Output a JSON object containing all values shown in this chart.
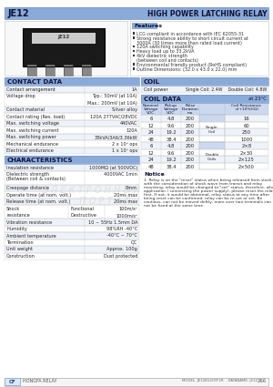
{
  "title_left": "JE12",
  "title_right": "HIGH POWER LATCHING RELAY",
  "header_bg": "#8aabda",
  "features": [
    "LCG compliant in accordance with IEC 62055-31",
    "Strong resistance ability to short circuit current at\n3000A (30 times more than rated load current)",
    "120A switching capability",
    "Heavy load up to 33.2kVA",
    "4kV dielectric strength\n(between coil and contacts)",
    "Environmental friendly product (RoHS compliant)",
    "Outline Dimensions: (32.0 x 43.0 x 22.0) mm"
  ],
  "contact_rows": [
    [
      "Contact arrangement",
      "1A"
    ],
    [
      "Voltage drop",
      "Typ.: 50mV (at 10A)\nMax.: 200mV (at 10A)"
    ],
    [
      "Contact material",
      "Silver alloy"
    ],
    [
      "Contact rating (Res. load)",
      "120A 277VAC/28VDC"
    ],
    [
      "Max. switching voltage",
      "440VAC"
    ],
    [
      "Max. switching current",
      "120A"
    ],
    [
      "Max. switching power",
      "33kVA/3A6/3.36kW"
    ],
    [
      "Mechanical endurance",
      "2 x 10⁵ ops"
    ],
    [
      "Electrical endurance",
      "1 x 10⁴ ops"
    ]
  ],
  "coil_power": "Single Coil: 2.4W    Double Coil: 4.8W",
  "coil_rows": [
    [
      "6",
      "4.8",
      "200",
      "Single\nCoil",
      "16"
    ],
    [
      "12",
      "9.6",
      "200",
      "",
      "60"
    ],
    [
      "24",
      "19.2",
      "200",
      "",
      "250"
    ],
    [
      "48",
      "38.4",
      "200",
      "",
      "1000"
    ],
    [
      "6",
      "4.8",
      "200",
      "Double\nCoils",
      "2×8"
    ],
    [
      "12",
      "9.6",
      "200",
      "",
      "2×30"
    ],
    [
      "24",
      "19.2",
      "200",
      "",
      "2×125"
    ],
    [
      "48",
      "38.4",
      "200",
      "",
      "2×500"
    ]
  ],
  "char_rows": [
    [
      "Insulation resistance",
      "1000MΩ (at 500VDC)",
      ""
    ],
    [
      "Dielectric strength\n(Between coil & contacts)",
      "4000VAC 1min",
      ""
    ],
    [
      "Creepage distance",
      "8mm",
      ""
    ],
    [
      "Operate time (at nom. volt.)",
      "20ms max",
      ""
    ],
    [
      "Release time (at nom. volt.)",
      "20ms max",
      ""
    ],
    [
      "Shock\nresistance",
      "Functional\nDestructive",
      "100m/s²\n1000m/s²"
    ],
    [
      "Vibration resistance",
      "10 ~ 55Hz 1.5mm DA",
      ""
    ],
    [
      "Humidity",
      "98%RH -40°C",
      ""
    ],
    [
      "Ambient temperature",
      "-40°C ~ 70°C",
      ""
    ],
    [
      "Termination",
      "QC",
      ""
    ],
    [
      "Unit weight",
      "Approx. 100g",
      ""
    ],
    [
      "Construction",
      "Dust protected",
      ""
    ]
  ],
  "notice_lines": [
    "1. Relay is on the \"reset\" status when being released from stock,",
    "with the consideration of shock wave from transit and relay",
    "mounting, relay would be changed to \"set\" status, therefore, when",
    "application ( connecting the power supply), please reset the relay",
    "first. If not, it would be abnormal, relay status at any time after",
    "being reset can be confirmed, relay can be re-set or set. Be",
    "cautious, can not be moved deftly, more over two terminals can",
    "not be fixed at the same time."
  ],
  "section_bg": "#8aabda",
  "row_even": "#eef2f9",
  "row_odd": "#ffffff",
  "text_dark": "#222222",
  "border_color": "#aaaaaa",
  "watermark_color": "#ddd8cc"
}
